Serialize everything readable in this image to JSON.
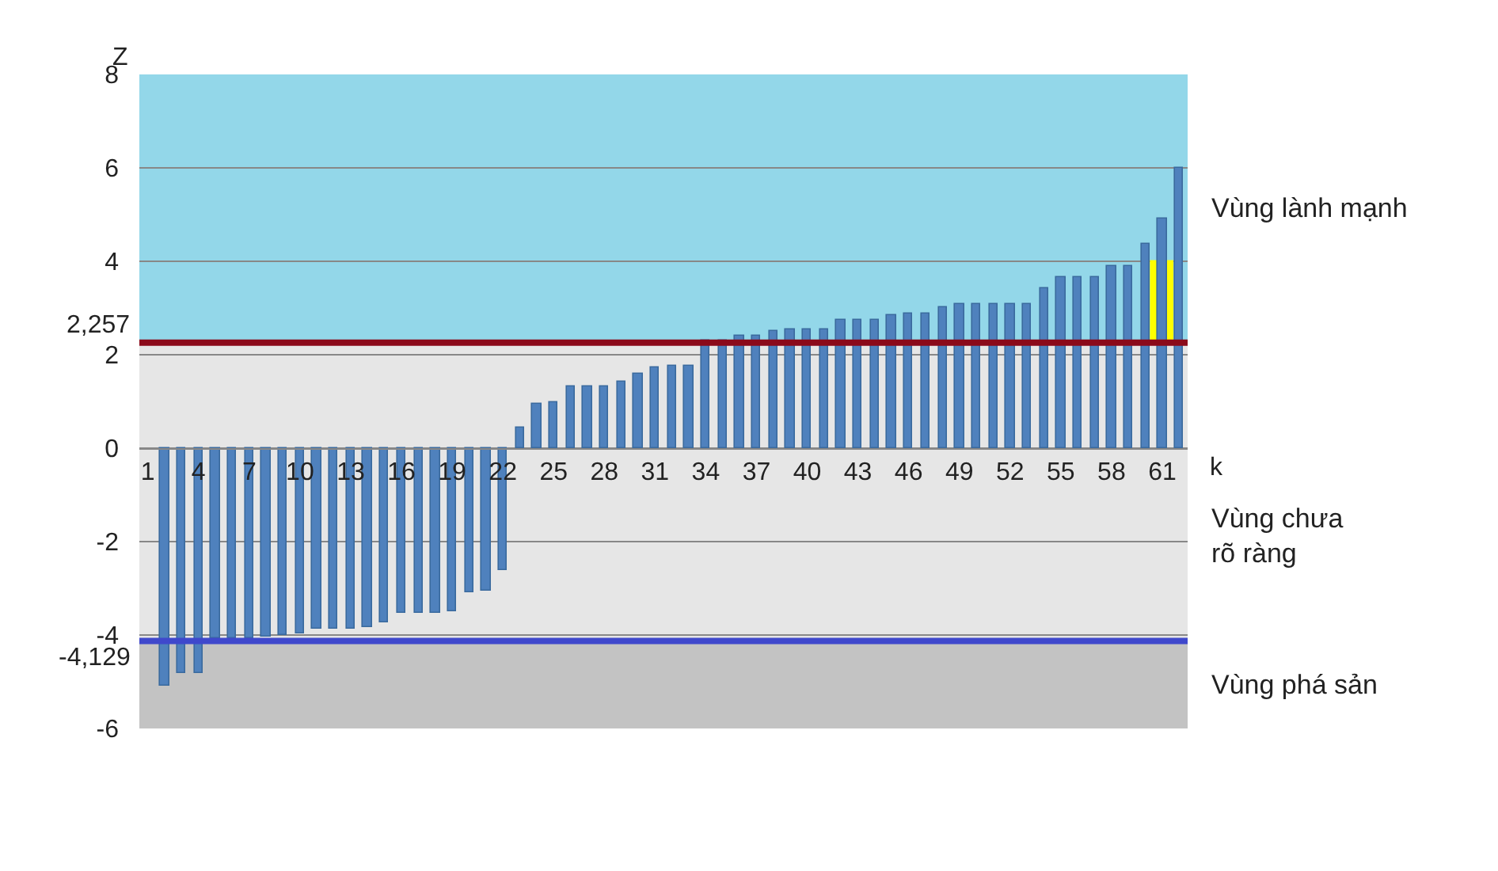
{
  "chart_data": {
    "type": "bar",
    "xlabel": "k",
    "ylabel": "Z",
    "categories": [
      "1",
      null,
      null,
      "4",
      null,
      null,
      "7",
      null,
      null,
      "10",
      null,
      null,
      "13",
      null,
      null,
      "16",
      null,
      null,
      "19",
      null,
      null,
      "22",
      null,
      null,
      "25",
      null,
      null,
      "28",
      null,
      null,
      "31",
      null,
      null,
      "34",
      null,
      null,
      "37",
      null,
      null,
      "40",
      null,
      null,
      "43",
      null,
      null,
      "46",
      null,
      null,
      "49",
      null,
      null,
      "52",
      null,
      null,
      "55",
      null,
      null,
      "58",
      null,
      null,
      "61",
      null
    ],
    "series": [
      {
        "color": "#ffff00",
        "base": [
          null,
          null,
          null,
          null,
          null,
          null,
          null,
          null,
          null,
          null,
          null,
          null,
          null,
          null,
          null,
          null,
          null,
          null,
          null,
          null,
          null,
          null,
          null,
          null,
          null,
          null,
          null,
          null,
          null,
          null,
          null,
          null,
          null,
          null,
          null,
          null,
          null,
          null,
          null,
          null,
          null,
          null,
          null,
          null,
          null,
          null,
          null,
          null,
          null,
          null,
          null,
          null,
          null,
          null,
          null,
          null,
          null,
          null,
          null,
          null,
          2.257,
          null
        ],
        "values": [
          null,
          null,
          null,
          null,
          null,
          null,
          null,
          null,
          null,
          null,
          null,
          null,
          null,
          null,
          null,
          null,
          null,
          null,
          null,
          null,
          null,
          null,
          null,
          null,
          null,
          null,
          null,
          null,
          null,
          null,
          null,
          null,
          null,
          null,
          null,
          null,
          null,
          null,
          null,
          null,
          null,
          null,
          null,
          null,
          null,
          null,
          null,
          null,
          null,
          null,
          null,
          null,
          null,
          null,
          null,
          null,
          null,
          null,
          null,
          null,
          1.74,
          null
        ]
      },
      {
        "color": "#4f81bd",
        "values": [
          null,
          -5.1,
          -4.8,
          -4.8,
          -4.08,
          -4.08,
          -4.06,
          -4.05,
          -4.0,
          -3.97,
          -3.88,
          -3.88,
          -3.88,
          -3.83,
          -3.74,
          -3.51,
          -3.51,
          -3.51,
          -3.48,
          -3.1,
          -3.06,
          -2.61,
          0.45,
          0.94,
          0.99,
          1.31,
          1.31,
          1.31,
          1.41,
          1.59,
          1.73,
          1.77,
          1.77,
          2.3,
          2.3,
          2.41,
          2.41,
          2.5,
          2.53,
          2.53,
          2.53,
          2.73,
          2.73,
          2.73,
          2.85,
          2.89,
          2.89,
          3.02,
          3.1,
          3.1,
          3.1,
          3.1,
          3.1,
          3.41,
          3.66,
          3.66,
          3.66,
          3.91,
          3.91,
          4.37,
          4.93,
          6.0
        ]
      }
    ],
    "ylim": [
      -6,
      8
    ],
    "yticks": [
      -6,
      -4,
      -2,
      0,
      2,
      4,
      6,
      8
    ],
    "grid": "y",
    "bands": [
      {
        "axis": "y",
        "from": 2.257,
        "to": 8,
        "label": "Vùng lành mạnh",
        "color": "#93d7e9"
      },
      {
        "axis": "y",
        "from": -4.129,
        "to": 2.257,
        "label": "Vùng chưa rõ ràng",
        "color": "#e6e6e6"
      },
      {
        "axis": "y",
        "from": -6,
        "to": -4.129,
        "label": "Vùng phá sản",
        "color": "#c3c3c3"
      }
    ],
    "ref_lines": [
      {
        "axis": "y",
        "value": 2.257,
        "label": "2,257",
        "color": "#8b0a1a"
      },
      {
        "axis": "y",
        "value": -4.129,
        "label": "-4,129",
        "color": "#3f48cc"
      }
    ]
  }
}
